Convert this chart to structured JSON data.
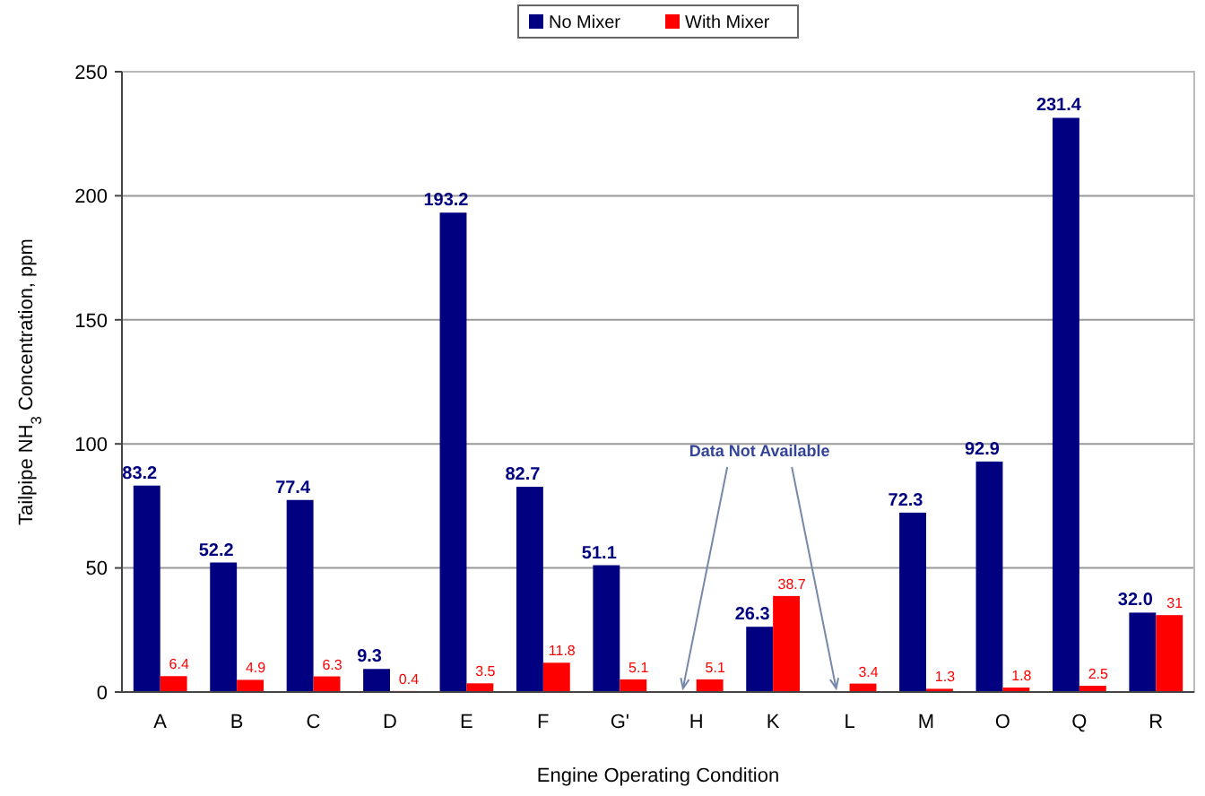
{
  "chart_data": {
    "type": "bar",
    "xlabel": "Engine Operating Condition",
    "ylabel": "Tailpipe NH$_{3}$ Concentration, ppm",
    "categories": [
      "A",
      "B",
      "C",
      "D",
      "E",
      "F",
      "G'",
      "H",
      "K",
      "L",
      "M",
      "O",
      "Q",
      "R"
    ],
    "series": [
      {
        "name": "No Mixer",
        "color": "#000080",
        "values": [
          83.2,
          52.2,
          77.4,
          9.3,
          193.2,
          82.7,
          51.1,
          null,
          26.3,
          null,
          72.3,
          92.9,
          231.4,
          32.0
        ],
        "value_labels": [
          "83.2",
          "52.2",
          "77.4",
          "9.3",
          "193.2",
          "82.7",
          "51.1",
          null,
          "26.3",
          null,
          "72.3",
          "92.9",
          "231.4",
          "32.0"
        ]
      },
      {
        "name": "With Mixer",
        "color": "#ff0000",
        "values": [
          6.4,
          4.9,
          6.3,
          0.4,
          3.5,
          11.8,
          5.1,
          5.1,
          38.7,
          3.4,
          1.3,
          1.8,
          2.5,
          31
        ],
        "value_labels": [
          "6.4",
          "4.9",
          "6.3",
          "0.4",
          "3.5",
          "11.8",
          "5.1",
          "5.1",
          "38.7",
          "3.4",
          "1.3",
          "1.8",
          "2.5",
          "31"
        ]
      }
    ],
    "ylim": [
      0,
      250
    ],
    "yticks": [
      0,
      50,
      100,
      150,
      200,
      250
    ],
    "grid": "y",
    "legend": "top",
    "annotations": [
      "Data Not Available"
    ]
  }
}
